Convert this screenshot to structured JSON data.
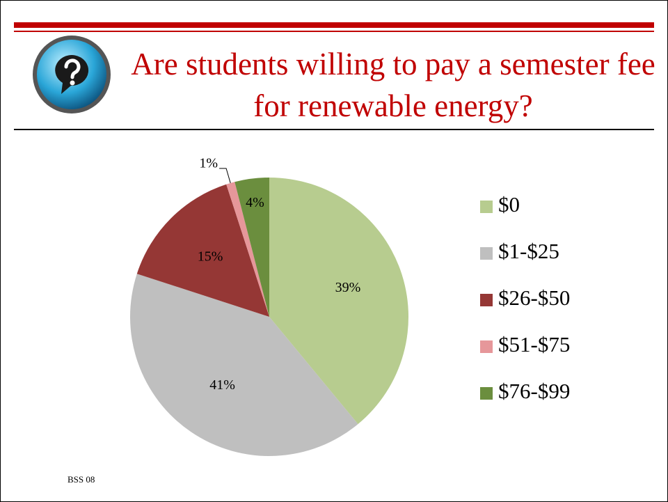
{
  "chart_data": {
    "type": "pie",
    "title": "Are students willing to pay a semester fee for renewable energy?",
    "categories": [
      "$0",
      "$1-$25",
      "$26-$50",
      "$51-$75",
      "$76-$99"
    ],
    "values": [
      39,
      41,
      15,
      1,
      4
    ],
    "value_labels": [
      "39%",
      "41%",
      "15%",
      "1%",
      "4%"
    ],
    "colors": [
      "#b7cc8f",
      "#bfbfbf",
      "#953735",
      "#e6979a",
      "#6b8e3e"
    ],
    "legend": "right",
    "footer": "BSS 08"
  }
}
